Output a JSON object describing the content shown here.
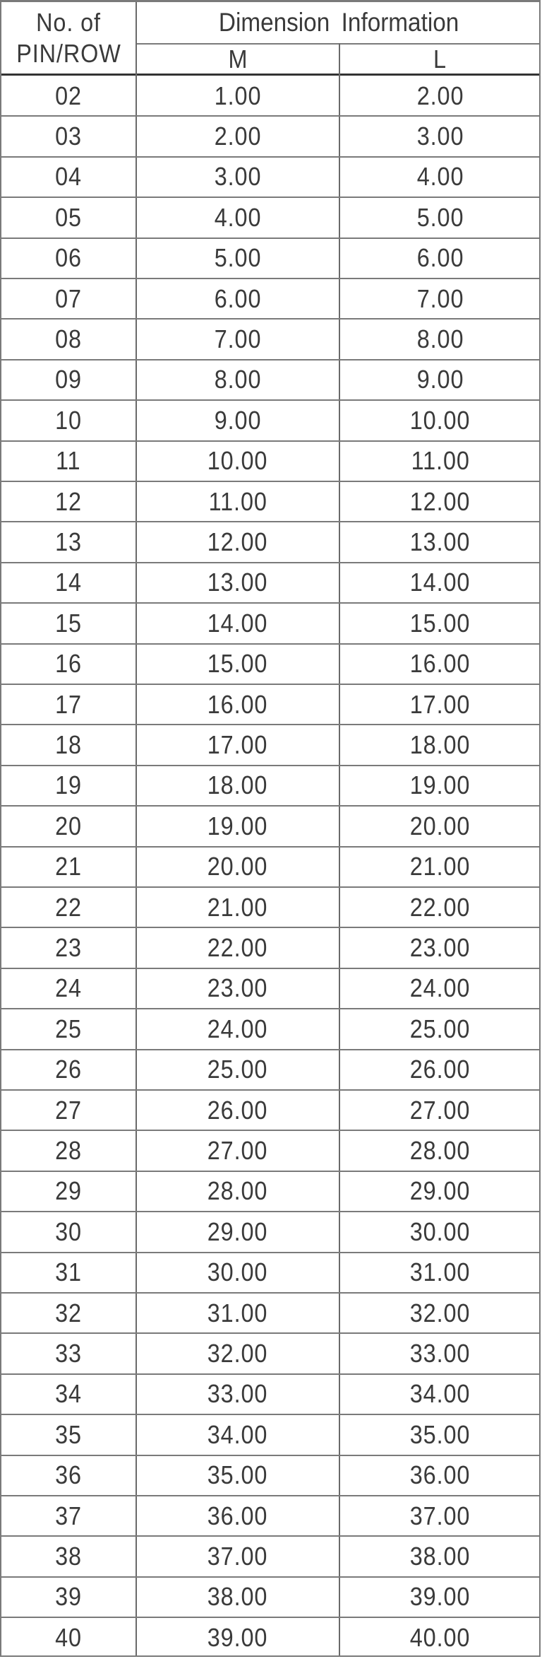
{
  "table": {
    "header": {
      "col1_line1": "No. of",
      "col1_line2": "PIN/ROW",
      "group": "Dimension Information",
      "col_m": "M",
      "col_l": "L"
    },
    "rows": [
      [
        "02",
        "1.00",
        "2.00"
      ],
      [
        "03",
        "2.00",
        "3.00"
      ],
      [
        "04",
        "3.00",
        "4.00"
      ],
      [
        "05",
        "4.00",
        "5.00"
      ],
      [
        "06",
        "5.00",
        "6.00"
      ],
      [
        "07",
        "6.00",
        "7.00"
      ],
      [
        "08",
        "7.00",
        "8.00"
      ],
      [
        "09",
        "8.00",
        "9.00"
      ],
      [
        "10",
        "9.00",
        "10.00"
      ],
      [
        "11",
        "10.00",
        "11.00"
      ],
      [
        "12",
        "11.00",
        "12.00"
      ],
      [
        "13",
        "12.00",
        "13.00"
      ],
      [
        "14",
        "13.00",
        "14.00"
      ],
      [
        "15",
        "14.00",
        "15.00"
      ],
      [
        "16",
        "15.00",
        "16.00"
      ],
      [
        "17",
        "16.00",
        "17.00"
      ],
      [
        "18",
        "17.00",
        "18.00"
      ],
      [
        "19",
        "18.00",
        "19.00"
      ],
      [
        "20",
        "19.00",
        "20.00"
      ],
      [
        "21",
        "20.00",
        "21.00"
      ],
      [
        "22",
        "21.00",
        "22.00"
      ],
      [
        "23",
        "22.00",
        "23.00"
      ],
      [
        "24",
        "23.00",
        "24.00"
      ],
      [
        "25",
        "24.00",
        "25.00"
      ],
      [
        "26",
        "25.00",
        "26.00"
      ],
      [
        "27",
        "26.00",
        "27.00"
      ],
      [
        "28",
        "27.00",
        "28.00"
      ],
      [
        "29",
        "28.00",
        "29.00"
      ],
      [
        "30",
        "29.00",
        "30.00"
      ],
      [
        "31",
        "30.00",
        "31.00"
      ],
      [
        "32",
        "31.00",
        "32.00"
      ],
      [
        "33",
        "32.00",
        "33.00"
      ],
      [
        "34",
        "33.00",
        "34.00"
      ],
      [
        "35",
        "34.00",
        "35.00"
      ],
      [
        "36",
        "35.00",
        "36.00"
      ],
      [
        "37",
        "36.00",
        "37.00"
      ],
      [
        "38",
        "37.00",
        "38.00"
      ],
      [
        "39",
        "38.00",
        "39.00"
      ],
      [
        "40",
        "39.00",
        "40.00"
      ]
    ]
  }
}
